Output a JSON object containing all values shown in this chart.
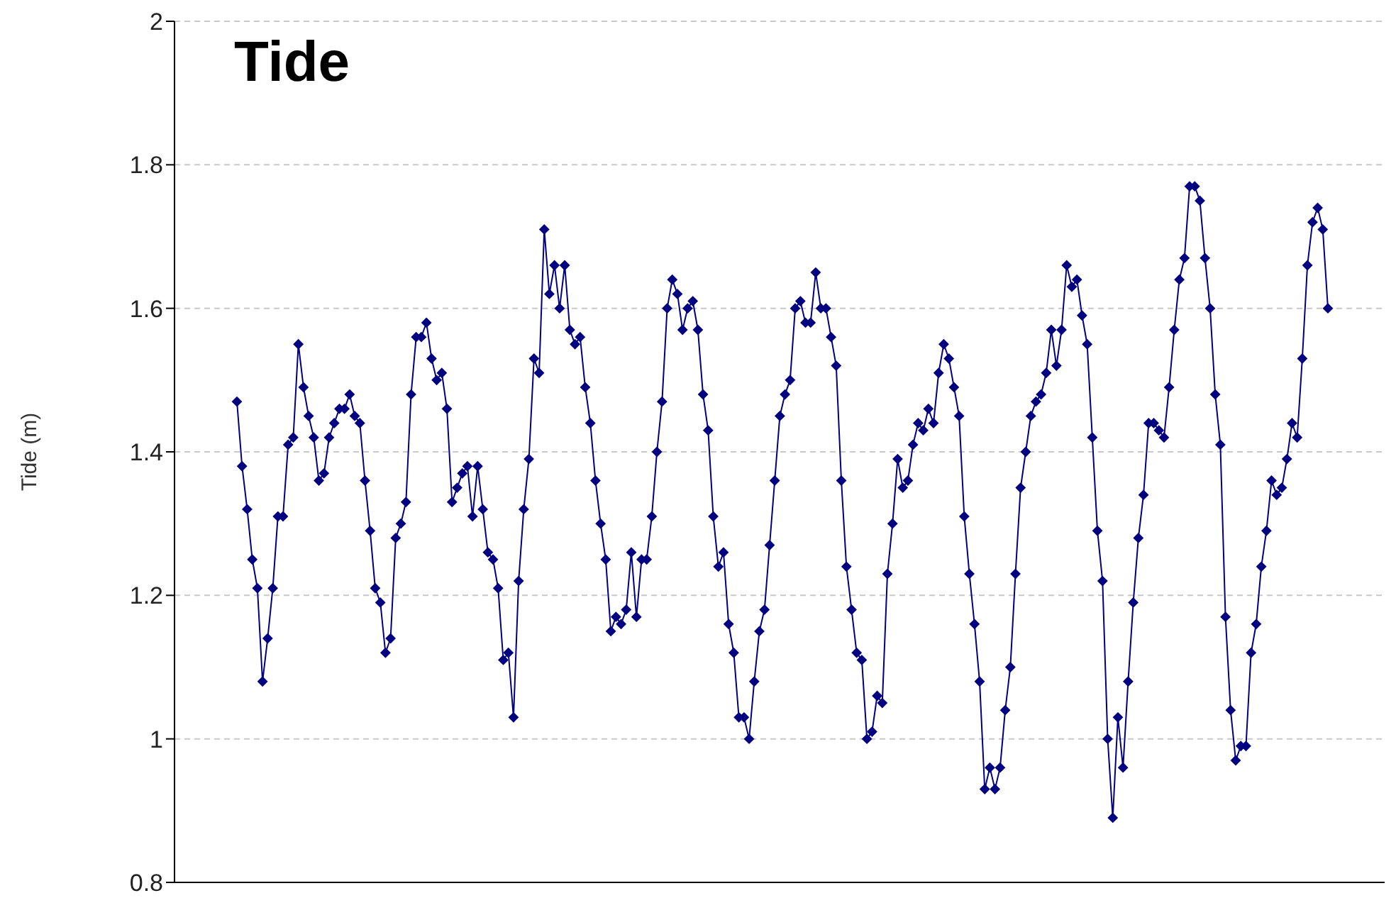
{
  "chart_data": {
    "type": "line",
    "title": "Tide",
    "ylabel": "Tide (m)",
    "categories": [
      null,
      null,
      null,
      null,
      null,
      null,
      null,
      null,
      null,
      null,
      null,
      null,
      null,
      null,
      null,
      null,
      null,
      null,
      null,
      null,
      null,
      null,
      null,
      null,
      null,
      null,
      null,
      null,
      null,
      null,
      null,
      null,
      null,
      null,
      null,
      null,
      null,
      null,
      null,
      null,
      null,
      null,
      null,
      null,
      null,
      null,
      null,
      null,
      null,
      null,
      null,
      null,
      null,
      null,
      null,
      null,
      null,
      null,
      null,
      null,
      null,
      null,
      null,
      null,
      null,
      null,
      null,
      null,
      null,
      null,
      null,
      null,
      null,
      null,
      null,
      null,
      null,
      null,
      null,
      null,
      null,
      null,
      null,
      null,
      null,
      null,
      null,
      null,
      null,
      null,
      null,
      null,
      null,
      null,
      null,
      null,
      null,
      null,
      null,
      null,
      null,
      null,
      null,
      null,
      null,
      null,
      null,
      null,
      null,
      null,
      null,
      null,
      null,
      null,
      null,
      null,
      null,
      null,
      null,
      null,
      null,
      null,
      null,
      null,
      null,
      null,
      null,
      null,
      null,
      null,
      null,
      null,
      null,
      null,
      null,
      null,
      null,
      null,
      null,
      null,
      null,
      null,
      null,
      null,
      null,
      null,
      null,
      null,
      null,
      null,
      null,
      null,
      null,
      null,
      null,
      null,
      null,
      null,
      null,
      null,
      null,
      null,
      null,
      null,
      null,
      null,
      null,
      null,
      null,
      null,
      null,
      null,
      null,
      null,
      null,
      null,
      null,
      null,
      null,
      null,
      null,
      null,
      null,
      null,
      null,
      null,
      null,
      null,
      null,
      null,
      null,
      null,
      null,
      null,
      null,
      null,
      null,
      null,
      null,
      null,
      null,
      null,
      null,
      null,
      null,
      null,
      null,
      null,
      null,
      null,
      null,
      null,
      null,
      null
    ],
    "ylim": [
      0.8,
      2
    ],
    "yticks": [
      0.8,
      1,
      1.2,
      1.4,
      1.6,
      1.8,
      2
    ],
    "grid": "y",
    "marker": "diamond",
    "line_style": "solid",
    "tick_labels": "y",
    "series": [
      {
        "color": "#000080",
        "values": [
          1.47,
          1.38,
          1.32,
          1.25,
          1.21,
          1.08,
          1.14,
          1.21,
          1.31,
          1.31,
          1.41,
          1.42,
          1.55,
          1.49,
          1.45,
          1.42,
          1.36,
          1.37,
          1.42,
          1.44,
          1.46,
          1.46,
          1.48,
          1.45,
          1.44,
          1.36,
          1.29,
          1.21,
          1.19,
          1.12,
          1.14,
          1.28,
          1.3,
          1.33,
          1.48,
          1.56,
          1.56,
          1.58,
          1.53,
          1.5,
          1.51,
          1.46,
          1.33,
          1.35,
          1.37,
          1.38,
          1.31,
          1.38,
          1.32,
          1.26,
          1.25,
          1.21,
          1.11,
          1.12,
          1.03,
          1.22,
          1.32,
          1.39,
          1.53,
          1.51,
          1.71,
          1.62,
          1.66,
          1.6,
          1.66,
          1.57,
          1.55,
          1.56,
          1.49,
          1.44,
          1.36,
          1.3,
          1.25,
          1.15,
          1.17,
          1.16,
          1.18,
          1.26,
          1.17,
          1.25,
          1.25,
          1.31,
          1.4,
          1.47,
          1.6,
          1.64,
          1.62,
          1.57,
          1.6,
          1.61,
          1.57,
          1.48,
          1.43,
          1.31,
          1.24,
          1.26,
          1.16,
          1.12,
          1.03,
          1.03,
          1,
          1.08,
          1.15,
          1.18,
          1.27,
          1.36,
          1.45,
          1.48,
          1.5,
          1.6,
          1.61,
          1.58,
          1.58,
          1.65,
          1.6,
          1.6,
          1.56,
          1.52,
          1.36,
          1.24,
          1.18,
          1.12,
          1.11,
          1,
          1.01,
          1.06,
          1.05,
          1.23,
          1.3,
          1.39,
          1.35,
          1.36,
          1.41,
          1.44,
          1.43,
          1.46,
          1.44,
          1.51,
          1.55,
          1.53,
          1.49,
          1.45,
          1.31,
          1.23,
          1.16,
          1.08,
          0.93,
          0.96,
          0.93,
          0.96,
          1.04,
          1.1,
          1.23,
          1.35,
          1.4,
          1.45,
          1.47,
          1.48,
          1.51,
          1.57,
          1.52,
          1.57,
          1.66,
          1.63,
          1.64,
          1.59,
          1.55,
          1.42,
          1.29,
          1.22,
          1,
          0.89,
          1.03,
          0.96,
          1.08,
          1.19,
          1.28,
          1.34,
          1.44,
          1.44,
          1.43,
          1.42,
          1.49,
          1.57,
          1.64,
          1.67,
          1.77,
          1.77,
          1.75,
          1.67,
          1.6,
          1.48,
          1.41,
          1.17,
          1.04,
          0.97,
          0.99,
          0.99,
          1.12,
          1.16,
          1.24,
          1.29,
          1.36,
          1.34,
          1.35,
          1.39,
          1.44,
          1.42,
          1.53,
          1.66,
          1.72,
          1.74,
          1.71,
          1.6
        ]
      }
    ]
  }
}
